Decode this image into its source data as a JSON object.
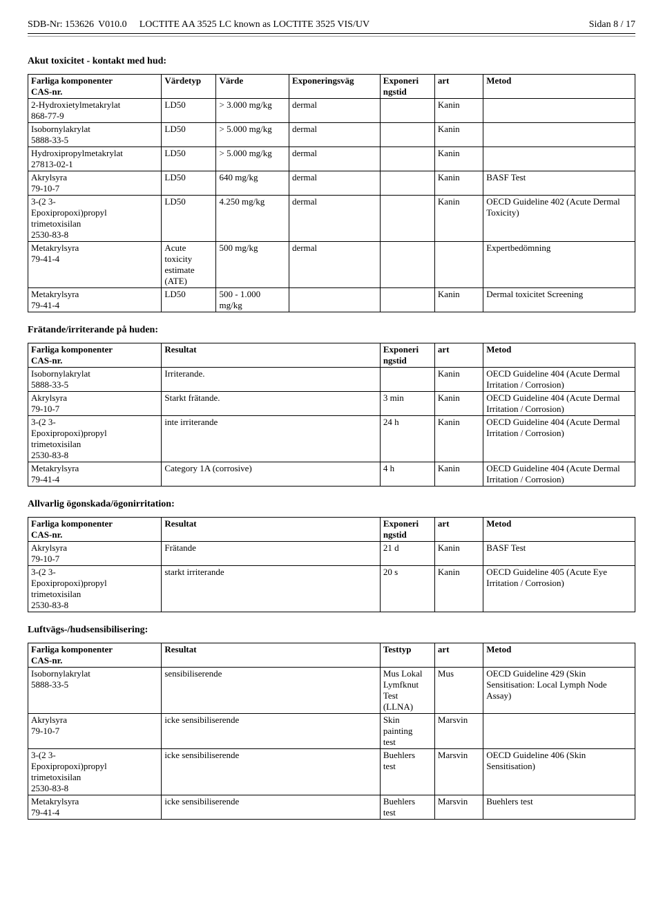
{
  "header": {
    "sdb": "SDB-Nr:  153626",
    "ver": "V010.0",
    "product": "LOCTITE AA 3525 LC known as  LOCTITE 3525 VIS/UV",
    "page": "Sidan 8 / 17"
  },
  "sec1": {
    "title": "Akut toxicitet - kontakt med hud:",
    "h": [
      "Farliga komponenter\nCAS-nr.",
      "Värdetyp",
      "Värde",
      "Exponeringsväg",
      "Exponeri\nngstid",
      "art",
      "Metod"
    ],
    "rows": [
      [
        "2-Hydroxietylmetakrylat\n868-77-9",
        "LD50",
        "> 3.000 mg/kg",
        "dermal",
        "",
        "Kanin",
        ""
      ],
      [
        "Isobornylakrylat\n5888-33-5",
        "LD50",
        "> 5.000 mg/kg",
        "dermal",
        "",
        "Kanin",
        ""
      ],
      [
        "Hydroxipropylmetakrylat\n27813-02-1",
        "LD50",
        "> 5.000 mg/kg",
        "dermal",
        "",
        "Kanin",
        ""
      ],
      [
        "Akrylsyra\n79-10-7",
        "LD50",
        "640 mg/kg",
        "dermal",
        "",
        "Kanin",
        "BASF Test"
      ],
      [
        "3-(2 3-\nEpoxipropoxi)propyl\ntrimetoxisilan\n2530-83-8",
        "LD50",
        "4.250 mg/kg",
        "dermal",
        "",
        "Kanin",
        "OECD Guideline 402 (Acute Dermal Toxicity)"
      ],
      [
        "Metakrylsyra\n79-41-4",
        "Acute\ntoxicity\nestimate\n(ATE)",
        "500 mg/kg",
        "dermal",
        "",
        "",
        "Expertbedömning"
      ],
      [
        "Metakrylsyra\n79-41-4",
        "LD50",
        "500 - 1.000\nmg/kg",
        "",
        "",
        "Kanin",
        "Dermal toxicitet Screening"
      ]
    ]
  },
  "sec2": {
    "title": "Frätande/irriterande på huden:",
    "h": [
      "Farliga komponenter\nCAS-nr.",
      "Resultat",
      "Exponeri\nngstid",
      "art",
      "Metod"
    ],
    "rows": [
      [
        "Isobornylakrylat\n5888-33-5",
        "Irriterande.",
        "",
        "Kanin",
        "OECD Guideline 404 (Acute Dermal Irritation / Corrosion)"
      ],
      [
        "Akrylsyra\n79-10-7",
        "Starkt frätande.",
        "3 min",
        "Kanin",
        "OECD Guideline 404 (Acute Dermal Irritation / Corrosion)"
      ],
      [
        "3-(2 3-\nEpoxipropoxi)propyl\ntrimetoxisilan\n2530-83-8",
        "inte irriterande",
        "24 h",
        "Kanin",
        "OECD Guideline 404 (Acute Dermal Irritation / Corrosion)"
      ],
      [
        "Metakrylsyra\n79-41-4",
        "Category 1A (corrosive)",
        "4 h",
        "Kanin",
        "OECD Guideline 404 (Acute Dermal Irritation / Corrosion)"
      ]
    ]
  },
  "sec3": {
    "title": "Allvarlig ögonskada/ögonirritation:",
    "h": [
      "Farliga komponenter\nCAS-nr.",
      "Resultat",
      "Exponeri\nngstid",
      "art",
      "Metod"
    ],
    "rows": [
      [
        "Akrylsyra\n79-10-7",
        "Frätande",
        "21 d",
        "Kanin",
        "BASF Test"
      ],
      [
        "3-(2 3-\nEpoxipropoxi)propyl\ntrimetoxisilan\n2530-83-8",
        "starkt irriterande",
        "20 s",
        "Kanin",
        "OECD Guideline 405 (Acute Eye Irritation / Corrosion)"
      ]
    ]
  },
  "sec4": {
    "title": "Luftvägs-/hudsensibilisering:",
    "h": [
      "Farliga komponenter\nCAS-nr.",
      "Resultat",
      "Testtyp",
      "art",
      "Metod"
    ],
    "rows": [
      [
        "Isobornylakrylat\n5888-33-5",
        "sensibiliserende",
        "Mus Lokal\nLymfknut\nTest\n(LLNA)",
        "Mus",
        "OECD Guideline 429 (Skin Sensitisation: Local Lymph Node Assay)"
      ],
      [
        "Akrylsyra\n79-10-7",
        "icke sensibiliserende",
        "Skin\npainting\ntest",
        "Marsvin",
        ""
      ],
      [
        "3-(2 3-\nEpoxipropoxi)propyl\ntrimetoxisilan\n2530-83-8",
        "icke sensibiliserende",
        "Buehlers\ntest",
        "Marsvin",
        "OECD Guideline 406 (Skin Sensitisation)"
      ],
      [
        "Metakrylsyra\n79-41-4",
        "icke sensibiliserende",
        "Buehlers\ntest",
        "Marsvin",
        "Buehlers test"
      ]
    ]
  }
}
